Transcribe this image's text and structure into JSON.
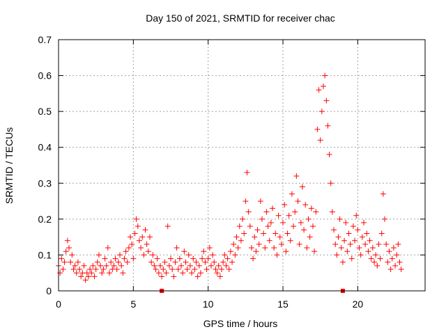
{
  "chart_data": {
    "type": "scatter",
    "title": "Day 150 of 2021, SRMTID for receiver chac",
    "xlabel": "GPS time / hours",
    "ylabel": "SRMTID / TECUs",
    "xlim": [
      0,
      24.5
    ],
    "ylim": [
      0,
      0.7
    ],
    "xticks": [
      0,
      5,
      10,
      15,
      20
    ],
    "yticks": [
      0,
      0.1,
      0.2,
      0.3,
      0.4,
      0.5,
      0.6,
      0.7
    ],
    "ytick_labels": [
      "0",
      "0.1",
      "0.2",
      "0.3",
      "0.4",
      "0.5",
      "0.6",
      "0.7"
    ],
    "grid": true,
    "marker": "+",
    "color": "#ff0000",
    "baseline_markers_x": [
      6.9,
      19.0
    ],
    "series": [
      {
        "name": "SRMTID",
        "points": [
          [
            0.0,
            0.07
          ],
          [
            0.1,
            0.05
          ],
          [
            0.2,
            0.09
          ],
          [
            0.3,
            0.06
          ],
          [
            0.4,
            0.08
          ],
          [
            0.5,
            0.11
          ],
          [
            0.6,
            0.14
          ],
          [
            0.7,
            0.12
          ],
          [
            0.8,
            0.08
          ],
          [
            0.9,
            0.1
          ],
          [
            1.0,
            0.06
          ],
          [
            1.1,
            0.07
          ],
          [
            1.2,
            0.05
          ],
          [
            1.3,
            0.08
          ],
          [
            1.4,
            0.06
          ],
          [
            1.5,
            0.04
          ],
          [
            1.6,
            0.05
          ],
          [
            1.7,
            0.07
          ],
          [
            1.8,
            0.03
          ],
          [
            1.9,
            0.05
          ],
          [
            2.0,
            0.04
          ],
          [
            2.1,
            0.06
          ],
          [
            2.2,
            0.05
          ],
          [
            2.3,
            0.07
          ],
          [
            2.4,
            0.04
          ],
          [
            2.5,
            0.06
          ],
          [
            2.6,
            0.08
          ],
          [
            2.7,
            0.1
          ],
          [
            2.8,
            0.07
          ],
          [
            2.9,
            0.05
          ],
          [
            3.0,
            0.06
          ],
          [
            3.1,
            0.09
          ],
          [
            3.2,
            0.07
          ],
          [
            3.3,
            0.12
          ],
          [
            3.4,
            0.05
          ],
          [
            3.5,
            0.08
          ],
          [
            3.6,
            0.06
          ],
          [
            3.7,
            0.07
          ],
          [
            3.8,
            0.09
          ],
          [
            3.9,
            0.06
          ],
          [
            4.0,
            0.08
          ],
          [
            4.1,
            0.1
          ],
          [
            4.2,
            0.07
          ],
          [
            4.3,
            0.05
          ],
          [
            4.4,
            0.09
          ],
          [
            4.5,
            0.11
          ],
          [
            4.6,
            0.08
          ],
          [
            4.7,
            0.12
          ],
          [
            4.8,
            0.15
          ],
          [
            4.9,
            0.13
          ],
          [
            5.0,
            0.09
          ],
          [
            5.1,
            0.16
          ],
          [
            5.2,
            0.2
          ],
          [
            5.3,
            0.18
          ],
          [
            5.4,
            0.14
          ],
          [
            5.5,
            0.12
          ],
          [
            5.6,
            0.15
          ],
          [
            5.7,
            0.1
          ],
          [
            5.8,
            0.17
          ],
          [
            5.9,
            0.13
          ],
          [
            6.0,
            0.11
          ],
          [
            6.1,
            0.15
          ],
          [
            6.2,
            0.08
          ],
          [
            6.3,
            0.1
          ],
          [
            6.4,
            0.07
          ],
          [
            6.5,
            0.06
          ],
          [
            6.6,
            0.09
          ],
          [
            6.7,
            0.05
          ],
          [
            6.8,
            0.07
          ],
          [
            6.9,
            0.04
          ],
          [
            7.0,
            0.06
          ],
          [
            7.1,
            0.08
          ],
          [
            7.2,
            0.05
          ],
          [
            7.3,
            0.18
          ],
          [
            7.4,
            0.07
          ],
          [
            7.5,
            0.09
          ],
          [
            7.6,
            0.06
          ],
          [
            7.7,
            0.04
          ],
          [
            7.8,
            0.08
          ],
          [
            7.9,
            0.12
          ],
          [
            8.0,
            0.06
          ],
          [
            8.1,
            0.09
          ],
          [
            8.2,
            0.07
          ],
          [
            8.3,
            0.05
          ],
          [
            8.4,
            0.11
          ],
          [
            8.5,
            0.08
          ],
          [
            8.6,
            0.06
          ],
          [
            8.7,
            0.1
          ],
          [
            8.8,
            0.07
          ],
          [
            8.9,
            0.05
          ],
          [
            9.0,
            0.09
          ],
          [
            9.1,
            0.06
          ],
          [
            9.2,
            0.08
          ],
          [
            9.3,
            0.04
          ],
          [
            9.4,
            0.07
          ],
          [
            9.5,
            0.05
          ],
          [
            9.6,
            0.09
          ],
          [
            9.7,
            0.11
          ],
          [
            9.8,
            0.08
          ],
          [
            9.9,
            0.06
          ],
          [
            10.0,
            0.09
          ],
          [
            10.1,
            0.12
          ],
          [
            10.2,
            0.07
          ],
          [
            10.3,
            0.1
          ],
          [
            10.4,
            0.08
          ],
          [
            10.5,
            0.06
          ],
          [
            10.6,
            0.05
          ],
          [
            10.7,
            0.07
          ],
          [
            10.8,
            0.04
          ],
          [
            10.9,
            0.06
          ],
          [
            11.0,
            0.08
          ],
          [
            11.1,
            0.1
          ],
          [
            11.2,
            0.07
          ],
          [
            11.3,
            0.09
          ],
          [
            11.4,
            0.06
          ],
          [
            11.5,
            0.11
          ],
          [
            11.6,
            0.08
          ],
          [
            11.7,
            0.13
          ],
          [
            11.8,
            0.1
          ],
          [
            11.9,
            0.15
          ],
          [
            12.0,
            0.12
          ],
          [
            12.1,
            0.18
          ],
          [
            12.2,
            0.14
          ],
          [
            12.3,
            0.2
          ],
          [
            12.4,
            0.16
          ],
          [
            12.5,
            0.25
          ],
          [
            12.6,
            0.33
          ],
          [
            12.7,
            0.22
          ],
          [
            12.8,
            0.18
          ],
          [
            12.9,
            0.12
          ],
          [
            13.0,
            0.09
          ],
          [
            13.1,
            0.15
          ],
          [
            13.2,
            0.11
          ],
          [
            13.3,
            0.17
          ],
          [
            13.4,
            0.13
          ],
          [
            13.5,
            0.25
          ],
          [
            13.6,
            0.2
          ],
          [
            13.7,
            0.16
          ],
          [
            13.8,
            0.12
          ],
          [
            13.9,
            0.22
          ],
          [
            14.0,
            0.18
          ],
          [
            14.1,
            0.14
          ],
          [
            14.2,
            0.19
          ],
          [
            14.3,
            0.23
          ],
          [
            14.4,
            0.12
          ],
          [
            14.5,
            0.16
          ],
          [
            14.6,
            0.1
          ],
          [
            14.7,
            0.21
          ],
          [
            14.8,
            0.15
          ],
          [
            14.9,
            0.13
          ],
          [
            15.0,
            0.19
          ],
          [
            15.1,
            0.24
          ],
          [
            15.2,
            0.11
          ],
          [
            15.3,
            0.16
          ],
          [
            15.4,
            0.21
          ],
          [
            15.5,
            0.14
          ],
          [
            15.6,
            0.27
          ],
          [
            15.7,
            0.18
          ],
          [
            15.8,
            0.22
          ],
          [
            15.9,
            0.32
          ],
          [
            16.0,
            0.25
          ],
          [
            16.1,
            0.13
          ],
          [
            16.2,
            0.19
          ],
          [
            16.3,
            0.29
          ],
          [
            16.4,
            0.17
          ],
          [
            16.5,
            0.24
          ],
          [
            16.6,
            0.12
          ],
          [
            16.7,
            0.2
          ],
          [
            16.8,
            0.15
          ],
          [
            16.9,
            0.23
          ],
          [
            17.0,
            0.18
          ],
          [
            17.1,
            0.11
          ],
          [
            17.2,
            0.22
          ],
          [
            17.3,
            0.45
          ],
          [
            17.4,
            0.56
          ],
          [
            17.5,
            0.42
          ],
          [
            17.6,
            0.5
          ],
          [
            17.7,
            0.57
          ],
          [
            17.8,
            0.6
          ],
          [
            17.9,
            0.53
          ],
          [
            18.0,
            0.46
          ],
          [
            18.1,
            0.38
          ],
          [
            18.2,
            0.3
          ],
          [
            18.3,
            0.22
          ],
          [
            18.4,
            0.17
          ],
          [
            18.5,
            0.13
          ],
          [
            18.6,
            0.1
          ],
          [
            18.7,
            0.15
          ],
          [
            18.8,
            0.2
          ],
          [
            18.9,
            0.12
          ],
          [
            19.0,
            0.08
          ],
          [
            19.1,
            0.14
          ],
          [
            19.2,
            0.19
          ],
          [
            19.3,
            0.11
          ],
          [
            19.4,
            0.16
          ],
          [
            19.5,
            0.13
          ],
          [
            19.6,
            0.09
          ],
          [
            19.7,
            0.18
          ],
          [
            19.8,
            0.14
          ],
          [
            19.9,
            0.21
          ],
          [
            20.0,
            0.17
          ],
          [
            20.1,
            0.12
          ],
          [
            20.2,
            0.1
          ],
          [
            20.3,
            0.15
          ],
          [
            20.4,
            0.19
          ],
          [
            20.5,
            0.13
          ],
          [
            20.6,
            0.16
          ],
          [
            20.7,
            0.11
          ],
          [
            20.8,
            0.14
          ],
          [
            20.9,
            0.09
          ],
          [
            21.0,
            0.12
          ],
          [
            21.1,
            0.08
          ],
          [
            21.2,
            0.1
          ],
          [
            21.3,
            0.07
          ],
          [
            21.4,
            0.13
          ],
          [
            21.5,
            0.09
          ],
          [
            21.6,
            0.16
          ],
          [
            21.7,
            0.27
          ],
          [
            21.8,
            0.2
          ],
          [
            21.9,
            0.13
          ],
          [
            22.0,
            0.08
          ],
          [
            22.1,
            0.11
          ],
          [
            22.2,
            0.06
          ],
          [
            22.3,
            0.09
          ],
          [
            22.4,
            0.12
          ],
          [
            22.5,
            0.07
          ],
          [
            22.6,
            0.1
          ],
          [
            22.7,
            0.13
          ],
          [
            22.8,
            0.08
          ],
          [
            22.9,
            0.06
          ]
        ]
      }
    ]
  }
}
